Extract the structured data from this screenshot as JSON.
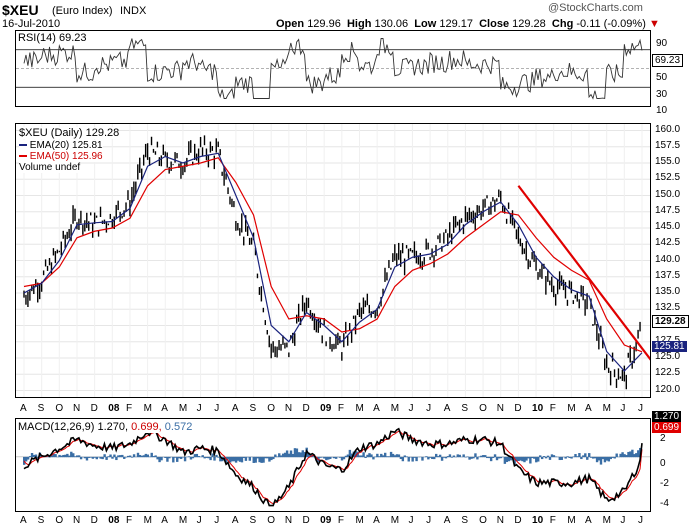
{
  "header": {
    "symbol": "$XEU",
    "name": "(Euro Index)",
    "exchange": "INDX",
    "date": "16-Jul-2010",
    "quote_labels": [
      "Open",
      "High",
      "Low",
      "Close",
      "Chg"
    ],
    "quote_values": [
      "129.96",
      "130.06",
      "129.17",
      "129.28",
      "-0.11 (-0.09%)"
    ],
    "chg_arrow": "▼",
    "watermark": "@StockCharts.com"
  },
  "colors": {
    "price_bar": "#000000",
    "ema20": "#1a237e",
    "ema50": "#e00000",
    "trendline": "#e00000",
    "macd": "#000000",
    "signal": "#e00000",
    "histogram": "#3a6ea5",
    "rsi": "#333333",
    "price_tag_bg": "#ffffff",
    "ema_tag_bg": "#1a237e"
  },
  "rsi_panel": {
    "legend": "RSI(14) 69.23",
    "current_tag": "69.23",
    "ticks": [
      "90",
      "70",
      "50",
      "30",
      "10"
    ]
  },
  "price_panel": {
    "legend_price": "$XEU (Daily) 129.28",
    "legend_ema20": "EMA(20) 125.81",
    "legend_ema50": "EMA(50) 125.96",
    "legend_volume": "Volume undef",
    "price_tag": "129.28",
    "ema_tag": "125.81",
    "ticks": [
      "160.0",
      "157.5",
      "155.0",
      "152.5",
      "150.0",
      "147.5",
      "145.0",
      "142.5",
      "140.0",
      "137.5",
      "135.0",
      "132.5",
      "130.0",
      "127.5",
      "125.0",
      "122.5",
      "120.0"
    ]
  },
  "macd_panel": {
    "legend_label": "MACD(12,26,9)",
    "legend_macd": "1.270,",
    "legend_signal": "0.699,",
    "legend_hist": "0.572",
    "tag_macd": "1.270",
    "tag_signal": "0.699",
    "ticks": [
      "2",
      "0",
      "-2",
      "-4"
    ]
  },
  "x_axis_labels": [
    "A",
    "S",
    "O",
    "N",
    "D",
    "08",
    "F",
    "M",
    "A",
    "M",
    "J",
    "J",
    "A",
    "S",
    "O",
    "N",
    "D",
    "09",
    "F",
    "M",
    "A",
    "M",
    "J",
    "J",
    "A",
    "S",
    "O",
    "N",
    "D",
    "10",
    "F",
    "M",
    "A",
    "M",
    "J",
    "J"
  ],
  "chart_data": {
    "type": "line",
    "title": "$XEU (Euro Index) INDX",
    "x": [
      "2007-08",
      "2007-09",
      "2007-10",
      "2007-11",
      "2007-12",
      "2008-01",
      "2008-02",
      "2008-03",
      "2008-04",
      "2008-05",
      "2008-06",
      "2008-07",
      "2008-08",
      "2008-09",
      "2008-10",
      "2008-11",
      "2008-12",
      "2009-01",
      "2009-02",
      "2009-03",
      "2009-04",
      "2009-05",
      "2009-06",
      "2009-07",
      "2009-08",
      "2009-09",
      "2009-10",
      "2009-11",
      "2009-12",
      "2010-01",
      "2010-02",
      "2010-03",
      "2010-04",
      "2010-05",
      "2010-06",
      "2010-07"
    ],
    "ylim": [
      119,
      161
    ],
    "series": [
      {
        "name": "$XEU (Daily)",
        "values": [
          134.5,
          137.0,
          141.5,
          146.8,
          145.5,
          146.8,
          149.0,
          156.8,
          155.5,
          155.0,
          157.0,
          156.5,
          146.8,
          142.0,
          126.5,
          126.5,
          134.0,
          129.0,
          126.5,
          132.0,
          133.0,
          140.5,
          140.5,
          141.5,
          143.5,
          146.5,
          148.0,
          149.5,
          143.5,
          139.0,
          136.0,
          135.0,
          133.5,
          124.0,
          122.0,
          129.3
        ]
      },
      {
        "name": "EMA(20)",
        "values": [
          135.0,
          136.5,
          140.0,
          145.5,
          145.8,
          146.0,
          148.0,
          154.5,
          156.0,
          155.0,
          156.0,
          156.5,
          150.0,
          143.5,
          130.0,
          127.5,
          132.0,
          130.0,
          127.5,
          130.5,
          132.5,
          139.0,
          140.5,
          141.0,
          142.5,
          145.5,
          147.5,
          149.0,
          145.5,
          140.5,
          137.5,
          135.5,
          134.5,
          126.0,
          123.0,
          125.81
        ]
      },
      {
        "name": "EMA(50)",
        "values": [
          136.0,
          136.5,
          139.0,
          143.5,
          144.5,
          145.0,
          146.5,
          151.5,
          154.0,
          154.5,
          155.0,
          155.8,
          152.0,
          147.0,
          136.0,
          131.0,
          131.5,
          131.0,
          129.0,
          129.5,
          131.0,
          136.0,
          138.5,
          139.5,
          141.0,
          143.5,
          145.5,
          147.5,
          147.0,
          143.5,
          140.5,
          138.5,
          137.0,
          131.0,
          127.0,
          125.96
        ]
      }
    ],
    "rsi": {
      "name": "RSI(14)",
      "ylim": [
        10,
        90
      ],
      "last": 69.23
    },
    "macd": {
      "name": "MACD(12,26,9)",
      "ylim": [
        -5,
        3.5
      ],
      "macd": 1.27,
      "signal": 0.699,
      "histogram": 0.572
    },
    "trendline": {
      "from": [
        "2009-12",
        151.5
      ],
      "to": [
        "2010-07",
        126.5
      ]
    }
  }
}
